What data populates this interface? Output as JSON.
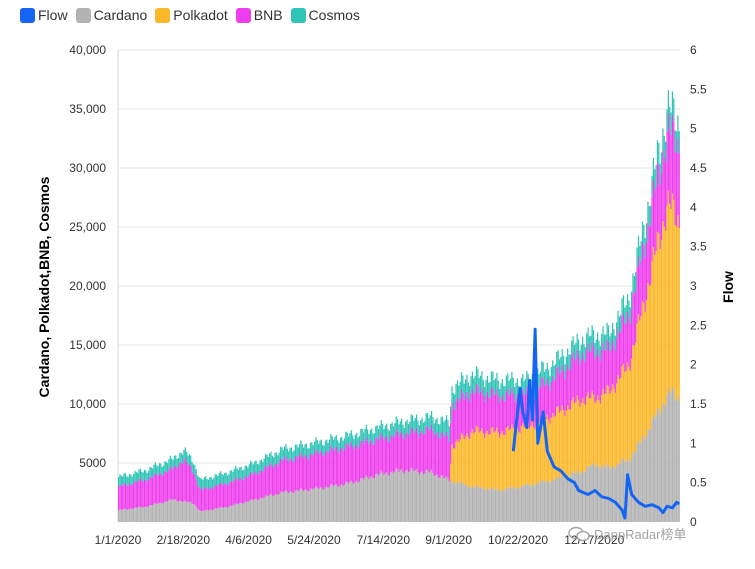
{
  "legend": {
    "items": [
      {
        "label": "Flow",
        "color": "#1565f5"
      },
      {
        "label": "Cardano",
        "color": "#b3b3b3"
      },
      {
        "label": "Polkadot",
        "color": "#fbb829"
      },
      {
        "label": "BNB",
        "color": "#ee3ded"
      },
      {
        "label": "Cosmos",
        "color": "#2ec4b6"
      }
    ]
  },
  "watermark": {
    "text": "DappRadar榜单"
  },
  "chart_data": {
    "type": "bar",
    "stacked": true,
    "grid": true,
    "legend_position": "top-left",
    "ylabel": "Cardano, Polkadot,BNB, Cosmos",
    "y2label": "Flow",
    "ylim": [
      0,
      40000
    ],
    "y2lim": [
      0,
      6
    ],
    "x_ticks": [
      "1/1/2020",
      "2/18/2020",
      "4/6/2020",
      "5/24/2020",
      "7/14/2020",
      "9/1/2020",
      "10/22/2020",
      "12/17/2020"
    ],
    "y_ticks": [
      "5000",
      "10,000",
      "15,000",
      "20,000",
      "25,000",
      "30,000",
      "35,000",
      "40,000"
    ],
    "y2_ticks": [
      "0",
      "0.5",
      "1",
      "1.5",
      "2",
      "2.5",
      "3",
      "3.5",
      "4",
      "4.5",
      "5",
      "5.5",
      "6"
    ],
    "series": [
      {
        "name": "Cardano",
        "color": "#b3b3b3",
        "points": [
          [
            0,
            1000
          ],
          [
            20,
            1300
          ],
          [
            40,
            1900
          ],
          [
            55,
            1600
          ],
          [
            60,
            900
          ],
          [
            80,
            1300
          ],
          [
            100,
            1900
          ],
          [
            120,
            2500
          ],
          [
            150,
            2900
          ],
          [
            170,
            3300
          ],
          [
            190,
            4000
          ],
          [
            210,
            4400
          ],
          [
            230,
            4200
          ],
          [
            244,
            3500
          ],
          [
            260,
            3000
          ],
          [
            280,
            2700
          ],
          [
            300,
            3100
          ],
          [
            320,
            3600
          ],
          [
            340,
            4300
          ],
          [
            350,
            4900
          ],
          [
            360,
            4600
          ],
          [
            375,
            5300
          ],
          [
            385,
            7000
          ],
          [
            395,
            9000
          ],
          [
            405,
            11000
          ],
          [
            412,
            10500
          ]
        ]
      },
      {
        "name": "Polkadot",
        "color": "#fbb829",
        "points": [
          [
            0,
            0
          ],
          [
            243,
            0
          ],
          [
            245,
            3000
          ],
          [
            260,
            4700
          ],
          [
            280,
            4900
          ],
          [
            300,
            5000
          ],
          [
            320,
            5500
          ],
          [
            340,
            6100
          ],
          [
            350,
            5600
          ],
          [
            360,
            6400
          ],
          [
            375,
            8000
          ],
          [
            385,
            11000
          ],
          [
            395,
            14000
          ],
          [
            403,
            16000
          ],
          [
            412,
            15000
          ]
        ]
      },
      {
        "name": "BNB",
        "color": "#ee3ded",
        "points": [
          [
            0,
            2000
          ],
          [
            20,
            2300
          ],
          [
            40,
            2600
          ],
          [
            48,
            3500
          ],
          [
            55,
            2700
          ],
          [
            60,
            1800
          ],
          [
            80,
            2000
          ],
          [
            100,
            2200
          ],
          [
            120,
            2700
          ],
          [
            150,
            3000
          ],
          [
            170,
            3100
          ],
          [
            190,
            3000
          ],
          [
            210,
            3100
          ],
          [
            230,
            3600
          ],
          [
            244,
            3500
          ],
          [
            260,
            3400
          ],
          [
            280,
            3100
          ],
          [
            300,
            2700
          ],
          [
            320,
            3100
          ],
          [
            340,
            3800
          ],
          [
            350,
            4000
          ],
          [
            360,
            3600
          ],
          [
            375,
            4200
          ],
          [
            385,
            4800
          ],
          [
            395,
            5500
          ],
          [
            403,
            6200
          ],
          [
            412,
            6500
          ]
        ]
      },
      {
        "name": "Cosmos",
        "color": "#2ec4b6",
        "points": [
          [
            0,
            800
          ],
          [
            20,
            800
          ],
          [
            40,
            850
          ],
          [
            60,
            850
          ],
          [
            80,
            900
          ],
          [
            100,
            900
          ],
          [
            120,
            950
          ],
          [
            150,
            950
          ],
          [
            170,
            950
          ],
          [
            190,
            1000
          ],
          [
            210,
            1050
          ],
          [
            230,
            1100
          ],
          [
            244,
            1400
          ],
          [
            260,
            1400
          ],
          [
            280,
            1300
          ],
          [
            300,
            1250
          ],
          [
            320,
            1300
          ],
          [
            340,
            1300
          ],
          [
            350,
            1350
          ],
          [
            360,
            1350
          ],
          [
            375,
            1500
          ],
          [
            385,
            1700
          ],
          [
            395,
            1800
          ],
          [
            405,
            1900
          ],
          [
            412,
            1900
          ]
        ]
      }
    ],
    "line_series": {
      "name": "Flow",
      "axis": "y2",
      "color": "#1565f5",
      "points": [
        [
          290,
          0.9
        ],
        [
          295,
          1.7
        ],
        [
          297,
          1.4
        ],
        [
          300,
          1.2
        ],
        [
          302,
          1.8
        ],
        [
          304,
          1.3
        ],
        [
          306,
          2.45
        ],
        [
          308,
          1.0
        ],
        [
          312,
          1.4
        ],
        [
          315,
          0.9
        ],
        [
          320,
          0.7
        ],
        [
          325,
          0.65
        ],
        [
          330,
          0.55
        ],
        [
          335,
          0.5
        ],
        [
          338,
          0.4
        ],
        [
          345,
          0.35
        ],
        [
          350,
          0.4
        ],
        [
          355,
          0.32
        ],
        [
          360,
          0.3
        ],
        [
          365,
          0.25
        ],
        [
          370,
          0.15
        ],
        [
          372,
          0.05
        ],
        [
          374,
          0.6
        ],
        [
          377,
          0.35
        ],
        [
          382,
          0.25
        ],
        [
          387,
          0.2
        ],
        [
          392,
          0.22
        ],
        [
          397,
          0.18
        ],
        [
          400,
          0.12
        ],
        [
          403,
          0.2
        ],
        [
          407,
          0.18
        ],
        [
          410,
          0.25
        ],
        [
          412,
          0.23
        ]
      ]
    }
  }
}
